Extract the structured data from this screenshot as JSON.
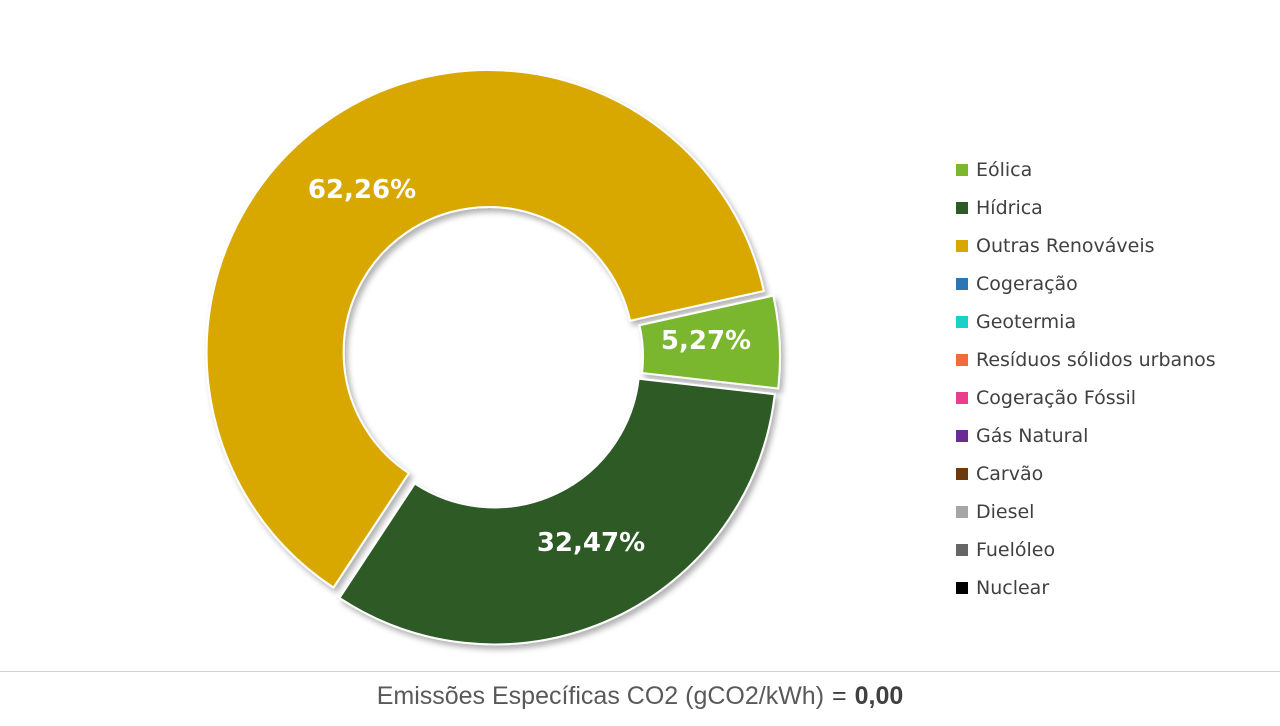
{
  "chart_data": {
    "type": "pie",
    "variant": "donut",
    "slices": [
      {
        "name": "Eólica",
        "value": 5.27,
        "label": "5,27%",
        "color": "#7ab72f"
      },
      {
        "name": "Hídrica",
        "value": 32.47,
        "label": "32,47%",
        "color": "#2d5a27"
      },
      {
        "name": "Outras Renováveis",
        "value": 62.26,
        "label": "62,26%",
        "color": "#d8a700"
      }
    ],
    "legend": {
      "placement": "right",
      "entries": [
        {
          "name": "Eólica",
          "color": "#7ab72f"
        },
        {
          "name": "Hídrica",
          "color": "#2d5a27"
        },
        {
          "name": "Outras Renováveis",
          "color": "#d8a700"
        },
        {
          "name": "Cogeração",
          "color": "#2e75b6"
        },
        {
          "name": "Geotermia",
          "color": "#1ccfc9"
        },
        {
          "name": "Resíduos sólidos urbanos",
          "color": "#f26b3a"
        },
        {
          "name": "Cogeração Fóssil",
          "color": "#e83e8c"
        },
        {
          "name": "Gás Natural",
          "color": "#6a2c91"
        },
        {
          "name": "Carvão",
          "color": "#6b3a0f"
        },
        {
          "name": "Diesel",
          "color": "#a6a6a6"
        },
        {
          "name": "Fuelóleo",
          "color": "#666666"
        },
        {
          "name": "Nuclear",
          "color": "#000000"
        }
      ]
    }
  },
  "footer": {
    "label": "Emissões Específicas CO2 (gCO2/kWh)",
    "equals": "=",
    "value": "0,00"
  }
}
